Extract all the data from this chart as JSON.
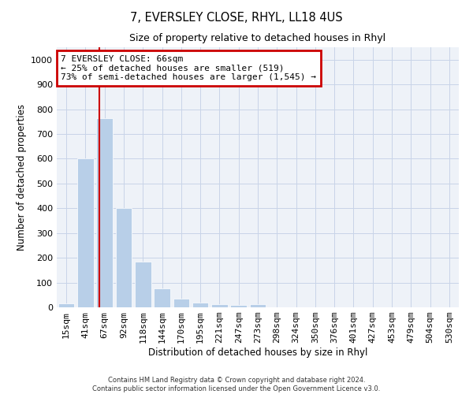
{
  "title": "7, EVERSLEY CLOSE, RHYL, LL18 4US",
  "subtitle": "Size of property relative to detached houses in Rhyl",
  "xlabel": "Distribution of detached houses by size in Rhyl",
  "ylabel": "Number of detached properties",
  "categories": [
    "15sqm",
    "41sqm",
    "67sqm",
    "92sqm",
    "118sqm",
    "144sqm",
    "170sqm",
    "195sqm",
    "221sqm",
    "247sqm",
    "273sqm",
    "298sqm",
    "324sqm",
    "350sqm",
    "376sqm",
    "401sqm",
    "427sqm",
    "453sqm",
    "479sqm",
    "504sqm",
    "530sqm"
  ],
  "values": [
    15,
    600,
    765,
    400,
    185,
    75,
    35,
    20,
    13,
    10,
    13,
    0,
    0,
    0,
    0,
    0,
    0,
    0,
    0,
    0,
    0
  ],
  "bar_color": "#b8cfe8",
  "bar_edge_color": "#ffffff",
  "grid_color": "#c8d4e8",
  "bg_color": "#eef2f8",
  "vline_x": 1.72,
  "vline_color": "#cc0000",
  "annotation_text": "7 EVERSLEY CLOSE: 66sqm\n← 25% of detached houses are smaller (519)\n73% of semi-detached houses are larger (1,545) →",
  "annotation_box_color": "#ffffff",
  "annotation_box_edge": "#cc0000",
  "footer": "Contains HM Land Registry data © Crown copyright and database right 2024.\nContains public sector information licensed under the Open Government Licence v3.0.",
  "ylim": [
    0,
    1050
  ],
  "yticks": [
    0,
    100,
    200,
    300,
    400,
    500,
    600,
    700,
    800,
    900,
    1000
  ]
}
